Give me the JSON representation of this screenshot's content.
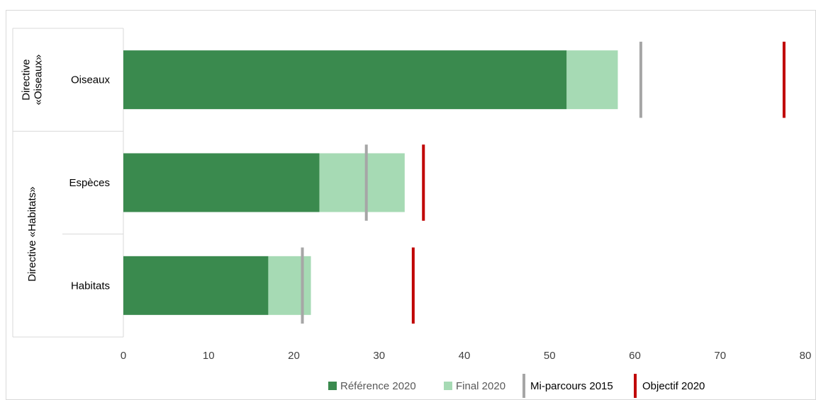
{
  "chart_data": {
    "type": "bar",
    "orientation": "horizontal",
    "stacked": true,
    "categories": [
      "Oiseaux",
      "Espèces",
      "Habitats"
    ],
    "groups": [
      {
        "label": "Directive «Oiseaux»",
        "lines": [
          "Directive",
          "«Oiseaux»"
        ],
        "categories": [
          "Oiseaux"
        ]
      },
      {
        "label": "Directive «Habitats»",
        "lines": [
          "Directive «Habitats»"
        ],
        "categories": [
          "Espèces",
          "Habitats"
        ]
      }
    ],
    "series": [
      {
        "name": "Référence 2020",
        "kind": "bar",
        "color": "#3a8a4e",
        "values": [
          52,
          23,
          17
        ]
      },
      {
        "name": "Final 2020",
        "kind": "bar",
        "color": "#a6dab4",
        "values": [
          6,
          10,
          5
        ]
      },
      {
        "name": "Mi-parcours 2015",
        "kind": "marker",
        "color": "#a6a6a6",
        "values": [
          60.7,
          28.5,
          21
        ]
      },
      {
        "name": "Objectif 2020",
        "kind": "marker",
        "color": "#c00000",
        "values": [
          77.5,
          35.2,
          34
        ]
      }
    ],
    "xlim": [
      0,
      80
    ],
    "xticks": [
      0,
      10,
      20,
      30,
      40,
      50,
      60,
      70,
      80
    ],
    "legend_position": "bottom",
    "grid": false
  }
}
